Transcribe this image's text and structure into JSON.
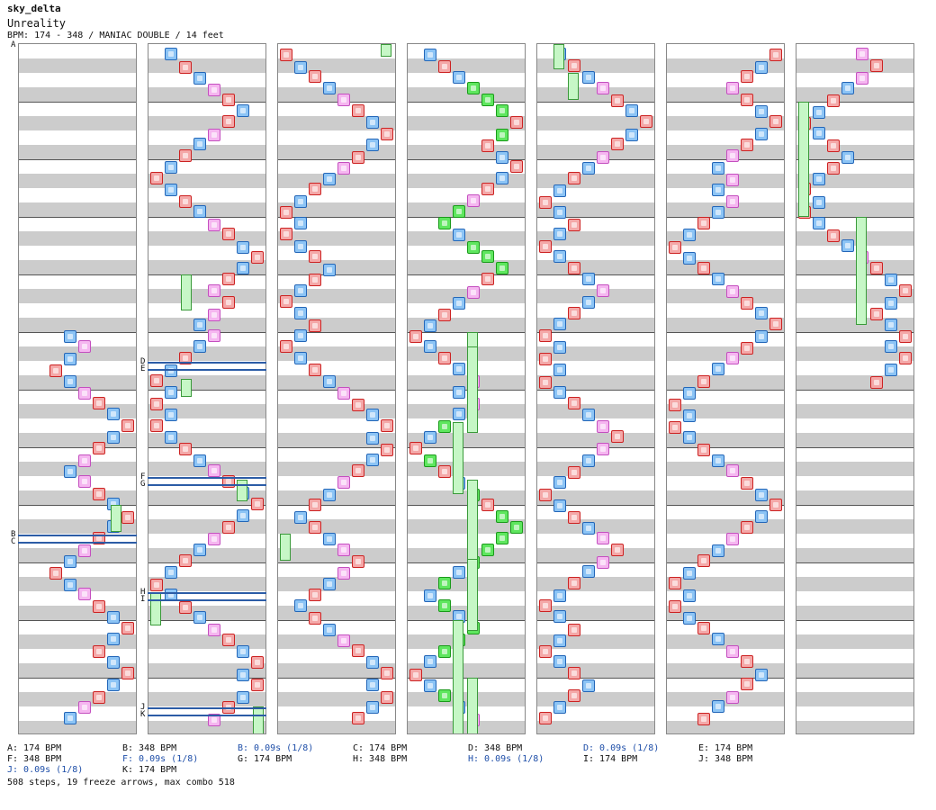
{
  "header": {
    "artist": "sky_delta",
    "title": "Unreality",
    "info": "BPM: 174 - 348 / MANIAC DOUBLE / 14 feet"
  },
  "columns": [
    "c1",
    "c2",
    "c3",
    "c4",
    "c5",
    "c6",
    "c7"
  ],
  "markers": [
    {
      "label": "A"
    },
    {
      "label": "B"
    },
    {
      "label": "C"
    },
    {
      "label": "D"
    },
    {
      "label": "E"
    },
    {
      "label": "F"
    },
    {
      "label": "G"
    },
    {
      "label": "H"
    },
    {
      "label": "I"
    },
    {
      "label": "J"
    },
    {
      "label": "K"
    }
  ],
  "legend": [
    {
      "text": "A: 174 BPM",
      "kind": "bpm"
    },
    {
      "text": "F: 348 BPM",
      "kind": "bpm"
    },
    {
      "text": "J: 0.09s (1/8)",
      "kind": "stop"
    },
    {
      "text": "B: 348 BPM",
      "kind": "bpm"
    },
    {
      "text": "F: 0.09s (1/8)",
      "kind": "stop"
    },
    {
      "text": "K: 174 BPM",
      "kind": "bpm"
    },
    {
      "text": "B: 0.09s (1/8)",
      "kind": "stop"
    },
    {
      "text": "G: 174 BPM",
      "kind": "bpm"
    },
    {
      "text": "C: 174 BPM",
      "kind": "bpm"
    },
    {
      "text": "H: 348 BPM",
      "kind": "bpm"
    },
    {
      "text": "D: 348 BPM",
      "kind": "bpm"
    },
    {
      "text": "H: 0.09s (1/8)",
      "kind": "stop"
    },
    {
      "text": "D: 0.09s (1/8)",
      "kind": "stop"
    },
    {
      "text": "I: 174 BPM",
      "kind": "bpm"
    },
    {
      "text": "E: 174 BPM",
      "kind": "bpm"
    },
    {
      "text": "J: 348 BPM",
      "kind": "bpm"
    }
  ],
  "summary": "508 steps, 19 freeze arrows, max combo 518",
  "colors": {
    "red": "#f4a8a8",
    "blue": "#8cc4f5",
    "pink": "#f5b6f0",
    "green": "#5fe65f",
    "bpm_line": "#2c5ca6"
  }
}
